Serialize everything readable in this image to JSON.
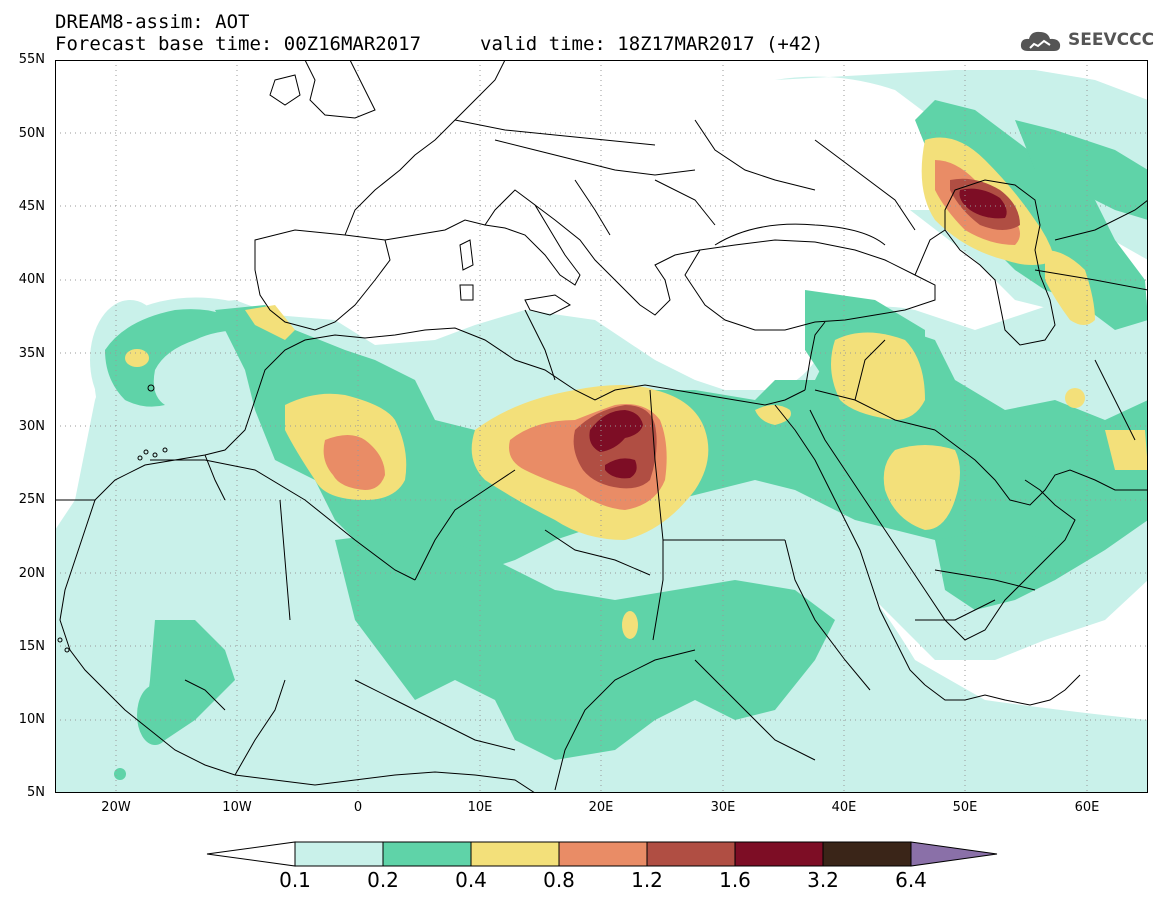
{
  "header": {
    "title": "DREAM8-assim: AOT",
    "base_time": "Forecast base time: 00Z16MAR2017",
    "valid_time": "valid time: 18Z17MAR2017 (+42)",
    "logo_text": "SEEVCCC"
  },
  "map": {
    "region": "North Africa / Mediterranean / Middle East",
    "lon_range": [
      -25,
      65
    ],
    "lat_range": [
      5,
      55
    ],
    "lat_labels": [
      "55N",
      "50N",
      "45N",
      "40N",
      "35N",
      "30N",
      "25N",
      "20N",
      "15N",
      "10N",
      "5N"
    ],
    "lon_labels": [
      "20W",
      "10W",
      "0",
      "10E",
      "20E",
      "30E",
      "40E",
      "50E",
      "60E"
    ],
    "gridlines": true
  },
  "legend": {
    "levels": [
      "0.1",
      "0.2",
      "0.4",
      "0.8",
      "1.2",
      "1.6",
      "3.2",
      "6.4"
    ],
    "colors": [
      "#c9f1ea",
      "#5fd3a8",
      "#f3e07a",
      "#e98c66",
      "#b04e43",
      "#7d0d25",
      "#3a2518",
      "#8a70a8"
    ],
    "low_color": "#ffffff"
  }
}
